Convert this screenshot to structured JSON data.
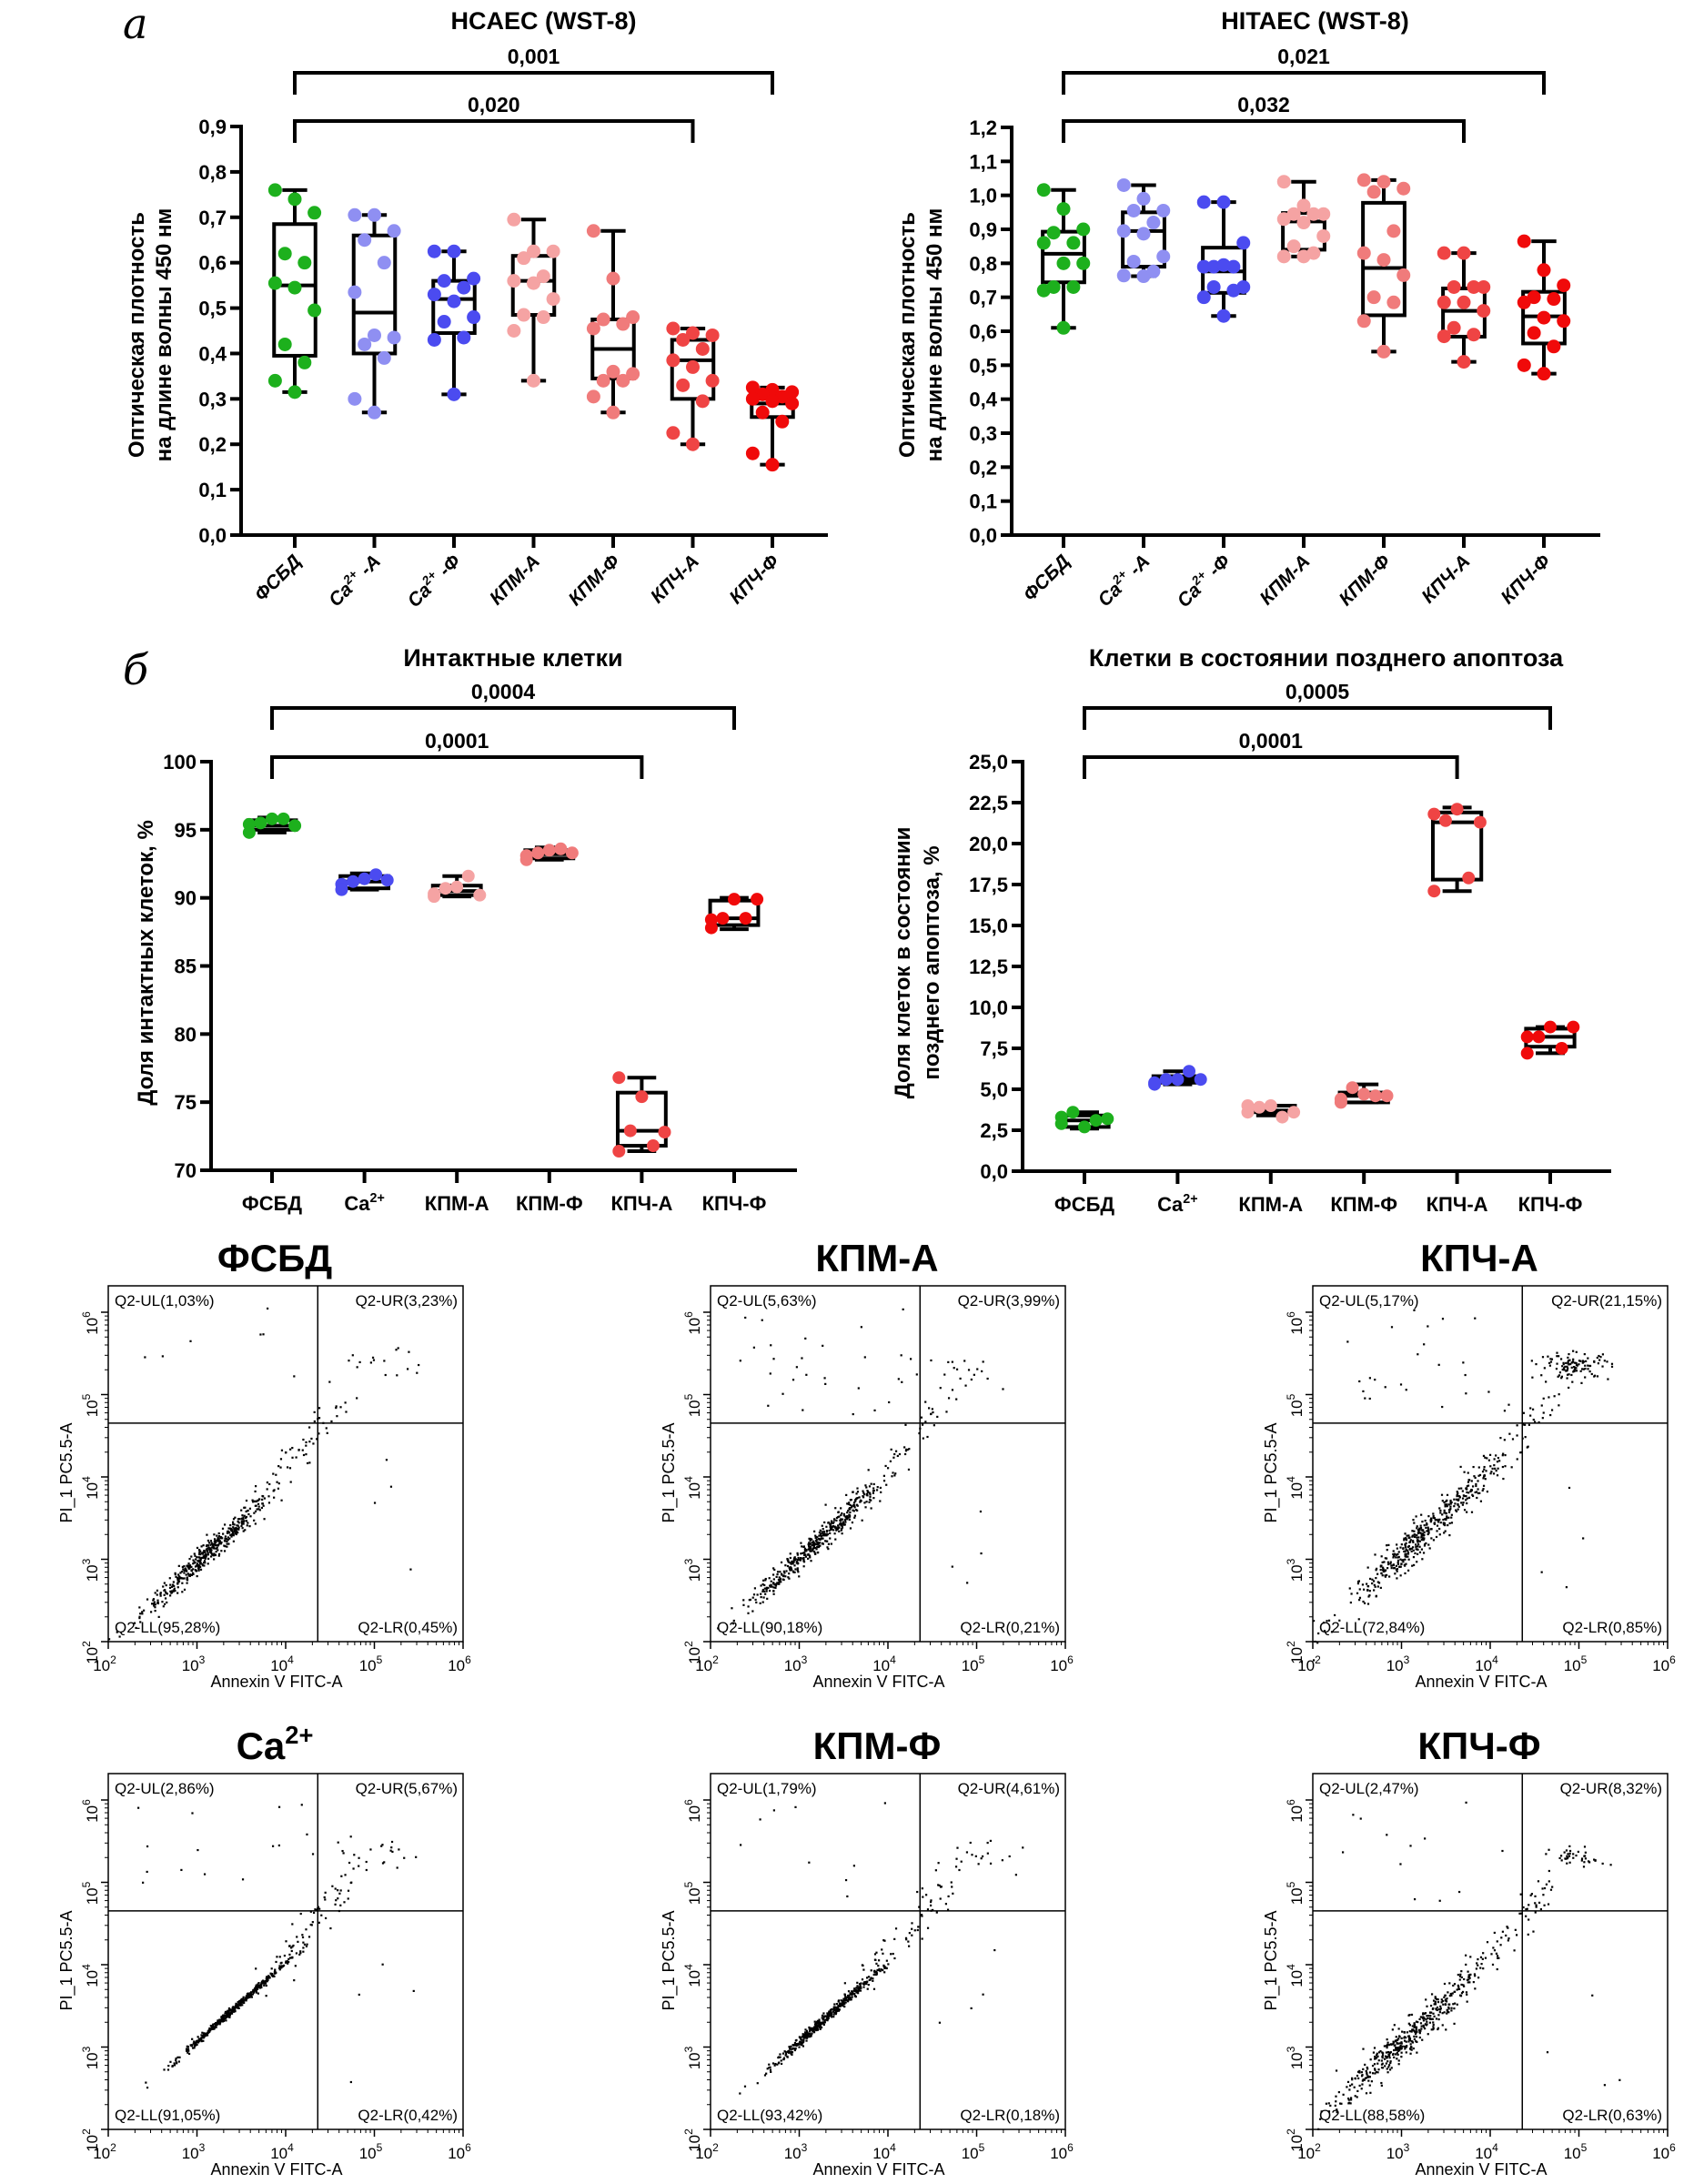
{
  "panel_labels": [
    "а",
    "б"
  ],
  "chart_data": [
    {
      "type": "box",
      "title": "HCAEC (WST-8)",
      "ylabel": [
        "Оптическая плотность",
        "на длине волны 450 нм"
      ],
      "ylim": [
        0,
        0.9
      ],
      "yticks": [
        0,
        0.1,
        0.2,
        0.3,
        0.4,
        0.5,
        0.6,
        0.7,
        0.8,
        0.9
      ],
      "ytick_labels": [
        "0,0",
        "0,1",
        "0,2",
        "0,3",
        "0,4",
        "0,5",
        "0,6",
        "0,7",
        "0,8",
        "0,9"
      ],
      "categories": [
        {
          "text": "ФСБД"
        },
        {
          "text": "Ca",
          "sup": "2+",
          "after": " -A"
        },
        {
          "text": "Ca",
          "sup": "2+",
          "after": " -Ф"
        },
        {
          "text": "КПМ-А"
        },
        {
          "text": "КПМ-Ф"
        },
        {
          "text": "КПЧ-А"
        },
        {
          "text": "КПЧ-Ф"
        }
      ],
      "colors": [
        "#1db01d",
        "#8f8ff2",
        "#4b4bf0",
        "#f5a3a3",
        "#f07b7b",
        "#ef4444",
        "#f00a0a"
      ],
      "boxes": [
        {
          "min": 0.315,
          "q1": 0.395,
          "median": 0.55,
          "q3": 0.685,
          "max": 0.76
        },
        {
          "min": 0.27,
          "q1": 0.4,
          "median": 0.49,
          "q3": 0.66,
          "max": 0.705
        },
        {
          "min": 0.31,
          "q1": 0.445,
          "median": 0.52,
          "q3": 0.56,
          "max": 0.625
        },
        {
          "min": 0.34,
          "q1": 0.485,
          "median": 0.56,
          "q3": 0.615,
          "max": 0.695
        },
        {
          "min": 0.27,
          "q1": 0.345,
          "median": 0.41,
          "q3": 0.475,
          "max": 0.67
        },
        {
          "min": 0.2,
          "q1": 0.3,
          "median": 0.385,
          "q3": 0.43,
          "max": 0.455
        },
        {
          "min": 0.155,
          "q1": 0.26,
          "median": 0.29,
          "q3": 0.31,
          "max": 0.325
        }
      ],
      "points": [
        [
          0.76,
          0.74,
          0.71,
          0.62,
          0.6,
          0.555,
          0.545,
          0.495,
          0.42,
          0.38,
          0.34,
          0.315
        ],
        [
          0.705,
          0.705,
          0.67,
          0.65,
          0.6,
          0.535,
          0.44,
          0.435,
          0.42,
          0.39,
          0.3,
          0.27
        ],
        [
          0.625,
          0.625,
          0.565,
          0.56,
          0.545,
          0.53,
          0.515,
          0.48,
          0.47,
          0.435,
          0.43,
          0.31
        ],
        [
          0.695,
          0.625,
          0.625,
          0.61,
          0.57,
          0.56,
          0.555,
          0.52,
          0.485,
          0.48,
          0.45,
          0.34
        ],
        [
          0.67,
          0.565,
          0.48,
          0.475,
          0.465,
          0.455,
          0.36,
          0.355,
          0.34,
          0.34,
          0.305,
          0.27
        ],
        [
          0.455,
          0.445,
          0.44,
          0.43,
          0.41,
          0.385,
          0.37,
          0.34,
          0.33,
          0.295,
          0.225,
          0.2
        ],
        [
          0.325,
          0.32,
          0.315,
          0.31,
          0.305,
          0.3,
          0.295,
          0.29,
          0.27,
          0.25,
          0.18,
          0.155
        ]
      ],
      "brackets": [
        {
          "from": 0,
          "to": 6,
          "label": "0,001"
        },
        {
          "from": 0,
          "to": 5,
          "label": "0,020"
        }
      ]
    },
    {
      "type": "box",
      "title": "HITAEC (WST-8)",
      "ylabel": [
        "Оптическая плотность",
        "на длине волны 450 нм"
      ],
      "ylim": [
        0,
        1.2
      ],
      "yticks": [
        0,
        0.1,
        0.2,
        0.3,
        0.4,
        0.5,
        0.6,
        0.7,
        0.8,
        0.9,
        1.0,
        1.1,
        1.2
      ],
      "ytick_labels": [
        "0,0",
        "0,1",
        "0,2",
        "0,3",
        "0,4",
        "0,5",
        "0,6",
        "0,7",
        "0,8",
        "0,9",
        "1,0",
        "1,1",
        "1,2"
      ],
      "categories": [
        {
          "text": "ФСБД"
        },
        {
          "text": "Ca",
          "sup": "2+",
          "after": " -A"
        },
        {
          "text": "Ca",
          "sup": "2+",
          "after": " -Ф"
        },
        {
          "text": "КПМ-А"
        },
        {
          "text": "КПМ-Ф"
        },
        {
          "text": "КПЧ-А"
        },
        {
          "text": "КПЧ-Ф"
        }
      ],
      "colors": [
        "#1db01d",
        "#8f8ff2",
        "#4b4bf0",
        "#f5a3a3",
        "#f07b7b",
        "#ef4444",
        "#f00a0a"
      ],
      "boxes": [
        {
          "min": 0.61,
          "q1": 0.744,
          "median": 0.828,
          "q3": 0.893,
          "max": 1.016
        },
        {
          "min": 0.762,
          "q1": 0.79,
          "median": 0.895,
          "q3": 0.95,
          "max": 1.03
        },
        {
          "min": 0.645,
          "q1": 0.713,
          "median": 0.776,
          "q3": 0.846,
          "max": 0.98
        },
        {
          "min": 0.82,
          "q1": 0.84,
          "median": 0.923,
          "q3": 0.948,
          "max": 1.04
        },
        {
          "min": 0.54,
          "q1": 0.647,
          "median": 0.786,
          "q3": 0.978,
          "max": 1.045
        },
        {
          "min": 0.51,
          "q1": 0.584,
          "median": 0.66,
          "q3": 0.726,
          "max": 0.83
        },
        {
          "min": 0.475,
          "q1": 0.564,
          "median": 0.644,
          "q3": 0.716,
          "max": 0.865
        }
      ],
      "points": [
        [
          1.016,
          0.96,
          0.9,
          0.89,
          0.86,
          0.86,
          0.8,
          0.8,
          0.73,
          0.73,
          0.72,
          0.61
        ],
        [
          1.03,
          0.99,
          0.955,
          0.955,
          0.92,
          0.895,
          0.887,
          0.82,
          0.805,
          0.776,
          0.764,
          0.762
        ],
        [
          0.98,
          0.98,
          0.86,
          0.79,
          0.79,
          0.79,
          0.795,
          0.73,
          0.73,
          0.72,
          0.7,
          0.645
        ],
        [
          1.04,
          0.97,
          0.945,
          0.945,
          0.945,
          0.93,
          0.92,
          0.88,
          0.85,
          0.83,
          0.82,
          0.82
        ],
        [
          1.045,
          1.04,
          1.02,
          1.01,
          0.895,
          0.83,
          0.81,
          0.765,
          0.7,
          0.685,
          0.63,
          0.54
        ],
        [
          0.83,
          0.83,
          0.73,
          0.73,
          0.73,
          0.685,
          0.685,
          0.66,
          0.61,
          0.59,
          0.585,
          0.51
        ],
        [
          0.865,
          0.78,
          0.735,
          0.7,
          0.695,
          0.685,
          0.64,
          0.63,
          0.595,
          0.555,
          0.5,
          0.475
        ]
      ],
      "brackets": [
        {
          "from": 0,
          "to": 6,
          "label": "0,021"
        },
        {
          "from": 0,
          "to": 5,
          "label": "0,032"
        }
      ]
    },
    {
      "type": "box",
      "title": "Интактные клетки",
      "ylabel": [
        "Доля интактных клеток, %"
      ],
      "ylim": [
        70,
        100
      ],
      "yticks": [
        70,
        75,
        80,
        85,
        90,
        95,
        100
      ],
      "ytick_labels": [
        "70",
        "75",
        "80",
        "85",
        "90",
        "95",
        "100"
      ],
      "categories": [
        {
          "text": "ФСБД"
        },
        {
          "text": "Ca",
          "sup": "2+"
        },
        {
          "text": "КПМ-А"
        },
        {
          "text": "КПМ-Ф"
        },
        {
          "text": "КПЧ-А"
        },
        {
          "text": "КПЧ-Ф"
        }
      ],
      "colors": [
        "#1db01d",
        "#4b4bf0",
        "#f5a3a3",
        "#f07b7b",
        "#ef4444",
        "#f00a0a"
      ],
      "boxes": [
        {
          "min": 94.8,
          "q1": 95.0,
          "median": 95.3,
          "q3": 95.7,
          "max": 95.9
        },
        {
          "min": 90.6,
          "q1": 90.7,
          "median": 91.2,
          "q3": 91.6,
          "max": 91.8
        },
        {
          "min": 90.1,
          "q1": 90.2,
          "median": 90.5,
          "q3": 90.9,
          "max": 91.6
        },
        {
          "min": 92.8,
          "q1": 92.9,
          "median": 93.2,
          "q3": 93.5,
          "max": 93.7
        },
        {
          "min": 71.4,
          "q1": 71.8,
          "median": 72.9,
          "q3": 75.7,
          "max": 76.8
        },
        {
          "min": 87.7,
          "q1": 88.0,
          "median": 88.5,
          "q3": 89.8,
          "max": 90.0
        }
      ],
      "points": [
        [
          95.4,
          95.8,
          95.3,
          95.5,
          95.8,
          94.8
        ],
        [
          91.0,
          91.4,
          91.3,
          91.2,
          91.7,
          90.6
        ],
        [
          90.3,
          90.8,
          90.2,
          90.7,
          91.6,
          90.1
        ],
        [
          93.1,
          93.5,
          93.3,
          93.3,
          93.6,
          92.8
        ],
        [
          76.8,
          75.4,
          72.8,
          72.9,
          71.8,
          71.4
        ],
        [
          87.8,
          89.9,
          89.9,
          88.5,
          88.5,
          88.4
        ]
      ],
      "brackets": [
        {
          "from": 0,
          "to": 5,
          "label": "0,0004"
        },
        {
          "from": 0,
          "to": 4,
          "label": "0,0001"
        }
      ]
    },
    {
      "type": "box",
      "title": "Клетки в состоянии позднего апоптоза",
      "ylabel": [
        "Доля клеток в состоянии",
        "позднего апоптоза, %"
      ],
      "ylim": [
        0,
        25
      ],
      "yticks": [
        0,
        2.5,
        5,
        7.5,
        10,
        12.5,
        15,
        17.5,
        20,
        22.5,
        25
      ],
      "ytick_labels": [
        "0,0",
        "2,5",
        "5,0",
        "7,5",
        "10,0",
        "12,5",
        "15,0",
        "17,5",
        "20,0",
        "22,5",
        "25,0"
      ],
      "categories": [
        {
          "text": "ФСБД"
        },
        {
          "text": "Ca",
          "sup": "2+"
        },
        {
          "text": "КПМ-А"
        },
        {
          "text": "КПМ-Ф"
        },
        {
          "text": "КПЧ-А"
        },
        {
          "text": "КПЧ-Ф"
        }
      ],
      "colors": [
        "#1db01d",
        "#4b4bf0",
        "#f5a3a3",
        "#f07b7b",
        "#ef4444",
        "#f00a0a"
      ],
      "boxes": [
        {
          "min": 2.6,
          "q1": 2.7,
          "median": 3.1,
          "q3": 3.4,
          "max": 3.6
        },
        {
          "min": 5.3,
          "q1": 5.4,
          "median": 5.6,
          "q3": 5.8,
          "max": 6.1
        },
        {
          "min": 3.4,
          "q1": 3.6,
          "median": 3.7,
          "q3": 4.0,
          "max": 4.0
        },
        {
          "min": 4.2,
          "q1": 4.2,
          "median": 4.6,
          "q3": 4.8,
          "max": 5.3
        },
        {
          "min": 17.1,
          "q1": 17.8,
          "median": 21.3,
          "q3": 21.9,
          "max": 22.2
        },
        {
          "min": 7.2,
          "q1": 7.6,
          "median": 8.2,
          "q3": 8.7,
          "max": 8.8
        }
      ],
      "points": [
        [
          3.3,
          2.7,
          3.2,
          3.6,
          3.1,
          2.9
        ],
        [
          5.3,
          5.6,
          5.6,
          5.6,
          6.1,
          5.4
        ],
        [
          3.6,
          4.0,
          3.6,
          3.9,
          3.3,
          4.0
        ],
        [
          4.4,
          4.7,
          4.6,
          5.1,
          4.6,
          4.2
        ],
        [
          21.8,
          22.1,
          21.3,
          21.4,
          17.9,
          17.1
        ],
        [
          8.2,
          8.8,
          8.8,
          8.2,
          7.5,
          7.2
        ]
      ],
      "brackets": [
        {
          "from": 0,
          "to": 5,
          "label": "0,0005"
        },
        {
          "from": 0,
          "to": 4,
          "label": "0,0001"
        }
      ]
    }
  ],
  "flow_plots": {
    "type": "scatter",
    "xlabel": "Annexin V FITC-A",
    "ylabel": "PI_1 PC5.5-A",
    "xscale": "log",
    "yscale": "log",
    "xlim": [
      100,
      1000000
    ],
    "tick_exponents": [
      "2",
      "3",
      "4",
      "5",
      "6"
    ],
    "tick_base": "10",
    "gate": {
      "x": 23000,
      "y": 45000
    },
    "point_color": "#000000",
    "plots": [
      {
        "title": {
          "text": "ФСБД"
        },
        "UL": "Q2-UL(1,03%)",
        "UR": "Q2-UR(3,23%)",
        "LL": "Q2-LL(95,28%)",
        "LR": "Q2-LR(0,45%)"
      },
      {
        "title": {
          "text": "КПМ-А"
        },
        "UL": "Q2-UL(5,63%)",
        "UR": "Q2-UR(3,99%)",
        "LL": "Q2-LL(90,18%)",
        "LR": "Q2-LR(0,21%)"
      },
      {
        "title": {
          "text": "КПЧ-А"
        },
        "UL": "Q2-UL(5,17%)",
        "UR": "Q2-UR(21,15%)",
        "LL": "Q2-LL(72,84%)",
        "LR": "Q2-LR(0,85%)"
      },
      {
        "title": {
          "text": "Ca",
          "sup": "2+"
        },
        "UL": "Q2-UL(2,86%)",
        "UR": "Q2-UR(5,67%)",
        "LL": "Q2-LL(91,05%)",
        "LR": "Q2-LR(0,42%)"
      },
      {
        "title": {
          "text": "КПМ-Ф"
        },
        "UL": "Q2-UL(1,79%)",
        "UR": "Q2-UR(4,61%)",
        "LL": "Q2-LL(93,42%)",
        "LR": "Q2-LR(0,18%)"
      },
      {
        "title": {
          "text": "КПЧ-Ф"
        },
        "UL": "Q2-UL(2,47%)",
        "UR": "Q2-UR(8,32%)",
        "LL": "Q2-LL(88,58%)",
        "LR": "Q2-LR(0,63%)"
      }
    ]
  }
}
